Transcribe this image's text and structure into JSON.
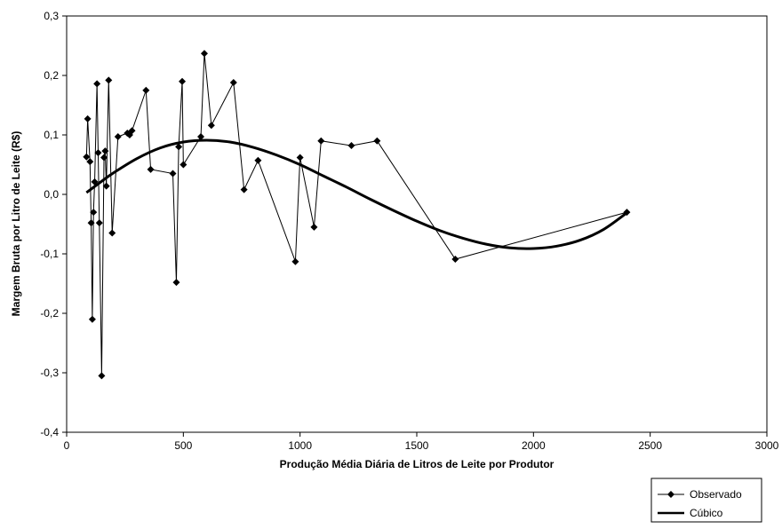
{
  "chart_data": {
    "type": "line",
    "xlabel": "Produção Média Diária de Litros de Leite por Produtor",
    "ylabel": "Margem Bruta por Litro de Leite (R$)",
    "xlim": [
      0,
      3000
    ],
    "ylim": [
      -0.4,
      0.3
    ],
    "x_ticks": [
      0,
      500,
      1000,
      1500,
      2000,
      2500,
      3000
    ],
    "x_tick_labels": [
      "0",
      "500",
      "1000",
      "1500",
      "2000",
      "2500",
      "3000"
    ],
    "y_ticks": [
      -0.4,
      -0.3,
      -0.2,
      -0.1,
      0.0,
      0.1,
      0.2,
      0.3
    ],
    "y_tick_labels": [
      "-0,4",
      "-0,3",
      "-0,2",
      "-0,1",
      "0,0",
      "0,1",
      "0,2",
      "0,3"
    ],
    "grid": false,
    "legend_position": "bottom-right",
    "series": [
      {
        "name": "Observado",
        "style": "line-with-diamond-markers",
        "color": "#000000",
        "x": [
          85,
          90,
          100,
          105,
          110,
          115,
          120,
          130,
          135,
          140,
          150,
          160,
          165,
          170,
          180,
          195,
          220,
          260,
          270,
          280,
          340,
          360,
          455,
          470,
          480,
          495,
          500,
          575,
          590,
          620,
          715,
          760,
          820,
          980,
          1000,
          1060,
          1090,
          1220,
          1330,
          1665,
          2400
        ],
        "y": [
          0.063,
          0.127,
          0.055,
          -0.048,
          -0.21,
          -0.03,
          0.021,
          0.186,
          0.07,
          -0.048,
          -0.305,
          0.062,
          0.073,
          0.014,
          0.192,
          -0.065,
          0.097,
          0.103,
          0.1,
          0.107,
          0.175,
          0.042,
          0.035,
          -0.148,
          0.08,
          0.19,
          0.05,
          0.097,
          0.237,
          0.116,
          0.188,
          0.008,
          0.057,
          -0.113,
          0.062,
          -0.055,
          0.09,
          0.082,
          0.09,
          -0.109,
          -0.03
        ]
      },
      {
        "name": "Cúbico",
        "style": "thick-smooth-line",
        "color": "#000000",
        "x": [
          85,
          150,
          200,
          300,
          400,
          500,
          600,
          700,
          800,
          900,
          1000,
          1100,
          1200,
          1300,
          1400,
          1500,
          1600,
          1700,
          1800,
          1900,
          2000,
          2100,
          2200,
          2300,
          2400
        ],
        "y": [
          0.003,
          0.022,
          0.036,
          0.06,
          0.078,
          0.088,
          0.091,
          0.088,
          0.079,
          0.066,
          0.05,
          0.031,
          0.012,
          -0.008,
          -0.027,
          -0.045,
          -0.061,
          -0.074,
          -0.084,
          -0.09,
          -0.091,
          -0.087,
          -0.077,
          -0.059,
          -0.031
        ]
      }
    ]
  }
}
